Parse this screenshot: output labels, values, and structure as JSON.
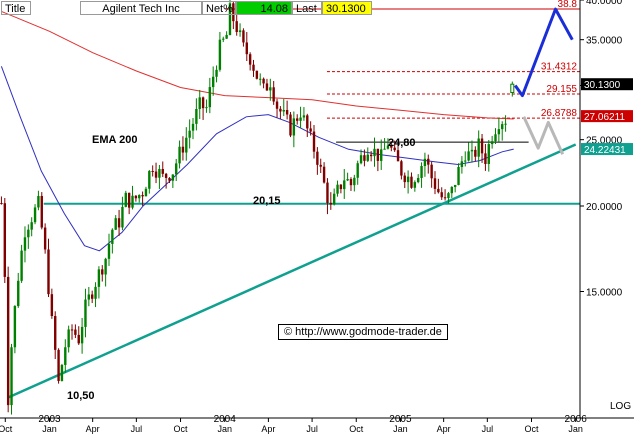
{
  "header": {
    "title_label": "Title",
    "instrument": "Agilent Tech Inc",
    "netpct_label": "Net%",
    "netpct_value": "14.08",
    "last_label": "Last",
    "last_value": "30.1300"
  },
  "colors": {
    "price_up": "#008000",
    "price_down": "#800000",
    "ema200": "#e03030",
    "ema_short": "#3030c0",
    "trendline": "#10a090",
    "forecast_blue": "#1a2ed8",
    "forecast_gray": "#b8b8b8",
    "last_badge_bg": "#ffff00",
    "netpct_bg": "#00cc00",
    "yaxis_label_bg": "#000000",
    "yaxis_label_red_bg": "#cc0000",
    "yaxis_label_teal_bg": "#10a090"
  },
  "annotations": {
    "ema_label": "EMA 200",
    "low_label": "10,50",
    "support_label": "20,15",
    "resistance_label": "24,80",
    "copyright": "© http://www.godmode-trader.de",
    "log_label": "LOG"
  },
  "chart_data": {
    "type": "candlestick",
    "scale": "log",
    "instrument": "Agilent Tech Inc",
    "ylim": [
      9.8,
      40.0
    ],
    "xlim": [
      "2002-09-20",
      "2006-01-10"
    ],
    "yticks": [
      15.0,
      20.0,
      25.0,
      30.0,
      35.0,
      40.0
    ],
    "ytick_labels": [
      "15.0000",
      "20.0000",
      "25.0000",
      "30.0000",
      "35.0000",
      "40.0000"
    ],
    "xtick_months": [
      "Oct",
      "Jan",
      "Apr",
      "Jul",
      "Oct",
      "Jan",
      "Apr",
      "Jul",
      "Oct",
      "Jan",
      "Apr",
      "Jul",
      "Oct",
      "Jan"
    ],
    "xtick_dates": [
      "2002-10-01",
      "2003-01-01",
      "2003-04-01",
      "2003-07-01",
      "2003-10-01",
      "2004-01-01",
      "2004-04-01",
      "2004-07-01",
      "2004-10-01",
      "2005-01-01",
      "2005-04-01",
      "2005-07-01",
      "2005-10-01",
      "2006-01-01"
    ],
    "year_labels": [
      {
        "label": "2003",
        "date": "2003-01-01"
      },
      {
        "label": "2004",
        "date": "2004-01-01"
      },
      {
        "label": "2005",
        "date": "2005-01-01"
      },
      {
        "label": "2006",
        "date": "2006-01-01"
      }
    ],
    "price_path": [
      [
        "2002-09-23",
        20.2
      ],
      [
        "2002-09-30",
        16.0
      ],
      [
        "2002-10-07",
        10.5
      ],
      [
        "2002-10-14",
        12.5
      ],
      [
        "2002-10-28",
        15.8
      ],
      [
        "2002-11-11",
        18.5
      ],
      [
        "2002-11-25",
        19.3
      ],
      [
        "2002-12-09",
        20.1
      ],
      [
        "2002-12-23",
        17.0
      ],
      [
        "2003-01-06",
        13.5
      ],
      [
        "2003-01-20",
        11.0
      ],
      [
        "2003-02-03",
        12.5
      ],
      [
        "2003-02-17",
        13.2
      ],
      [
        "2003-03-03",
        12.8
      ],
      [
        "2003-03-17",
        14.2
      ],
      [
        "2003-04-07",
        15.5
      ],
      [
        "2003-04-28",
        16.8
      ],
      [
        "2003-05-12",
        18.5
      ],
      [
        "2003-05-26",
        19.0
      ],
      [
        "2003-06-09",
        20.5
      ],
      [
        "2003-06-23",
        20.3
      ],
      [
        "2003-07-14",
        21.0
      ],
      [
        "2003-08-04",
        23.0
      ],
      [
        "2003-08-25",
        22.0
      ],
      [
        "2003-09-15",
        22.5
      ],
      [
        "2003-10-06",
        24.5
      ],
      [
        "2003-10-27",
        26.5
      ],
      [
        "2003-11-10",
        28.0
      ],
      [
        "2003-11-24",
        27.8
      ],
      [
        "2003-12-08",
        31.0
      ],
      [
        "2003-12-22",
        34.0
      ],
      [
        "2004-01-05",
        35.5
      ],
      [
        "2004-01-12",
        38.5
      ],
      [
        "2004-01-26",
        36.5
      ],
      [
        "2004-02-09",
        34.0
      ],
      [
        "2004-02-23",
        33.0
      ],
      [
        "2004-03-08",
        31.0
      ],
      [
        "2004-03-22",
        29.5
      ],
      [
        "2004-04-05",
        30.5
      ],
      [
        "2004-04-19",
        28.0
      ],
      [
        "2004-05-03",
        27.0
      ],
      [
        "2004-05-17",
        26.0
      ],
      [
        "2004-06-07",
        27.5
      ],
      [
        "2004-06-28",
        25.0
      ],
      [
        "2004-07-12",
        23.5
      ],
      [
        "2004-07-26",
        21.5
      ],
      [
        "2004-08-09",
        19.8
      ],
      [
        "2004-08-23",
        21.0
      ],
      [
        "2004-09-06",
        22.0
      ],
      [
        "2004-09-20",
        21.5
      ],
      [
        "2004-10-04",
        23.0
      ],
      [
        "2004-10-25",
        24.5
      ],
      [
        "2004-11-08",
        24.0
      ],
      [
        "2004-11-22",
        23.5
      ],
      [
        "2004-12-06",
        24.8
      ],
      [
        "2004-12-20",
        23.5
      ],
      [
        "2005-01-03",
        22.5
      ],
      [
        "2005-01-24",
        21.8
      ],
      [
        "2005-02-07",
        22.5
      ],
      [
        "2005-02-21",
        23.5
      ],
      [
        "2005-03-07",
        22.0
      ],
      [
        "2005-03-21",
        21.0
      ],
      [
        "2005-04-04",
        20.2
      ],
      [
        "2005-04-18",
        21.0
      ],
      [
        "2005-05-02",
        22.5
      ],
      [
        "2005-05-16",
        24.0
      ],
      [
        "2005-05-30",
        23.5
      ],
      [
        "2005-06-13",
        24.5
      ],
      [
        "2005-06-27",
        23.5
      ],
      [
        "2005-07-11",
        25.5
      ],
      [
        "2005-07-25",
        26.7
      ],
      [
        "2005-08-08",
        26.8
      ]
    ],
    "last_candle": {
      "date": "2005-08-22",
      "open": 29.3,
      "high": 30.4,
      "low": 28.9,
      "close": 30.13
    },
    "ema200": [
      [
        "2002-09-23",
        38.5
      ],
      [
        "2002-11-01",
        37.5
      ],
      [
        "2003-01-01",
        36.0
      ],
      [
        "2003-04-01",
        33.5
      ],
      [
        "2003-07-01",
        31.5
      ],
      [
        "2003-10-01",
        29.8
      ],
      [
        "2004-01-01",
        29.0
      ],
      [
        "2004-04-01",
        28.8
      ],
      [
        "2004-07-01",
        28.6
      ],
      [
        "2004-10-01",
        28.0
      ],
      [
        "2005-01-01",
        27.6
      ],
      [
        "2005-04-01",
        27.2
      ],
      [
        "2005-07-01",
        26.9
      ],
      [
        "2005-08-25",
        26.8
      ]
    ],
    "ema_short": [
      [
        "2002-09-23",
        32.0
      ],
      [
        "2002-11-01",
        27.0
      ],
      [
        "2002-12-15",
        22.5
      ],
      [
        "2003-02-01",
        19.5
      ],
      [
        "2003-03-15",
        17.5
      ],
      [
        "2003-04-15",
        17.2
      ],
      [
        "2003-06-01",
        18.3
      ],
      [
        "2003-07-15",
        20.0
      ],
      [
        "2003-09-01",
        21.5
      ],
      [
        "2003-10-15",
        23.0
      ],
      [
        "2003-12-15",
        25.5
      ],
      [
        "2004-02-15",
        27.0
      ],
      [
        "2004-04-01",
        27.2
      ],
      [
        "2004-05-15",
        26.5
      ],
      [
        "2004-07-15",
        25.2
      ],
      [
        "2004-09-15",
        24.2
      ],
      [
        "2004-11-15",
        23.8
      ],
      [
        "2005-01-15",
        23.5
      ],
      [
        "2005-03-15",
        23.2
      ],
      [
        "2005-05-01",
        23.0
      ],
      [
        "2005-06-15",
        23.3
      ],
      [
        "2005-08-01",
        24.0
      ],
      [
        "2005-08-25",
        24.22
      ]
    ],
    "trendline": [
      [
        "2002-10-07",
        10.5
      ],
      [
        "2006-01-01",
        24.6
      ]
    ],
    "support_line": {
      "value": 20.15,
      "start": "2002-12-20",
      "end": "2006-01-10"
    },
    "resistance_line": {
      "value": 24.8,
      "start": "2004-08-20",
      "end": "2005-09-25"
    },
    "fib_levels": [
      {
        "value": 38.8,
        "label": "38.8",
        "start": "2004-01-01"
      },
      {
        "value": 31.4312,
        "label": "31.4312",
        "start": "2004-08-01"
      },
      {
        "value": 29.155,
        "label": "29.155",
        "start": "2004-08-01"
      },
      {
        "value": 26.8788,
        "label": "26.8788",
        "start": "2004-08-01"
      }
    ],
    "forecast_bull": [
      [
        "2005-08-28",
        30.0
      ],
      [
        "2005-09-12",
        29.0
      ],
      [
        "2005-11-20",
        38.8
      ],
      [
        "2005-12-25",
        35.0
      ]
    ],
    "forecast_bear": [
      [
        "2005-09-15",
        27.0
      ],
      [
        "2005-10-15",
        24.3
      ],
      [
        "2005-11-05",
        26.5
      ],
      [
        "2005-12-05",
        23.8
      ]
    ],
    "axis_labels": [
      {
        "value": 30.13,
        "text": "30.1300",
        "style": "black"
      },
      {
        "value": 27.06211,
        "text": "27.06211",
        "style": "red"
      },
      {
        "value": 24.22431,
        "text": "24.22431",
        "style": "teal"
      }
    ]
  }
}
